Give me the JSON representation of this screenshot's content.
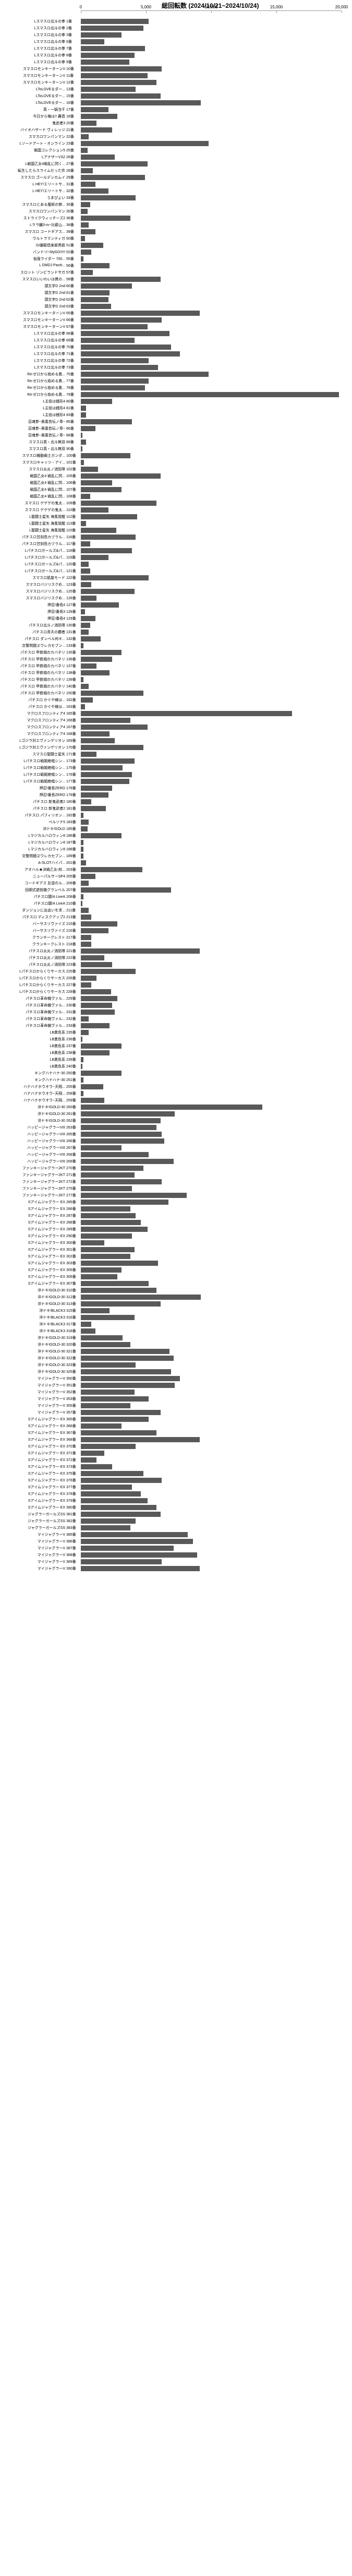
{
  "title": "総回転数 (2024/10/21~2024/10/24)",
  "max": 20000,
  "ticks": [
    0,
    5000,
    10000,
    15000,
    20000
  ],
  "bar_color": "#595959",
  "rows": [
    {
      "l": "Lスマスロ北斗の拳",
      "n": "1番",
      "v": 5200
    },
    {
      "l": "Lスマスロ北斗の拳",
      "n": "2番",
      "v": 4800
    },
    {
      "l": "Lスマスロ北斗の拳",
      "n": "3番",
      "v": 3100
    },
    {
      "l": "Lスマスロ北斗の拳",
      "n": "6番",
      "v": 1800
    },
    {
      "l": "Lスマスロ北斗の拳",
      "n": "7番",
      "v": 4900
    },
    {
      "l": "Lスマスロ北斗の拳",
      "n": "8番",
      "v": 4100
    },
    {
      "l": "Lスマスロ北斗の拳",
      "n": "9番",
      "v": 3700
    },
    {
      "l": "スマスロモンキーターンV",
      "n": "10番",
      "v": 6200
    },
    {
      "l": "スマスロモンキーターンV",
      "n": "11番",
      "v": 5100
    },
    {
      "l": "スマスロモンキーターンV",
      "n": "12番",
      "v": 5800
    },
    {
      "l": "LToLOVEるダー...",
      "n": "13番",
      "v": 4200
    },
    {
      "l": "LToLOVEるダー...",
      "n": "15番",
      "v": 6100
    },
    {
      "l": "LToLOVEるダー...",
      "n": "16番",
      "v": 9200
    },
    {
      "l": "真・一騎当千",
      "n": "17番",
      "v": 2100
    },
    {
      "l": "今日から俺は!! 轟音",
      "n": "18番",
      "v": 2800
    },
    {
      "l": "鬼武者3",
      "n": "20番",
      "v": 1200
    },
    {
      "l": "バイオハザード ヴィレッジ",
      "n": "21番",
      "v": 2400
    },
    {
      "l": "スマスロワンパンマン",
      "n": "22番",
      "v": 600
    },
    {
      "l": "Lソードアート・オンライン",
      "n": "23番",
      "v": 9800
    },
    {
      "l": "戦国コレクション5",
      "n": "25番",
      "v": 500
    },
    {
      "l": "LアナザーVS2",
      "n": "26番",
      "v": 2600
    },
    {
      "l": "L戦国乙女4戦乱に閃く...",
      "n": "27番",
      "v": 5100
    },
    {
      "l": "転生したらスライムだった件",
      "n": "28番",
      "v": 900
    },
    {
      "l": "スマスロ ゴールデンカムイ",
      "n": "29番",
      "v": 4900
    },
    {
      "l": "L HEY!エリートサ...",
      "n": "31番",
      "v": 1100
    },
    {
      "l": "L HEY!エリートサ...",
      "n": "32番",
      "v": 2100
    },
    {
      "l": "うまぴょい",
      "n": "33番",
      "v": 4200
    },
    {
      "l": "スマスロとある魔術の禁...",
      "n": "35番",
      "v": 700
    },
    {
      "l": "スマスロワンパンマン",
      "n": "35番",
      "v": 500
    },
    {
      "l": "ストライクウィッチーズ2",
      "n": "36番",
      "v": 3800
    },
    {
      "l": "Lララ臓3-m~比叡山...",
      "n": "38番",
      "v": 600
    },
    {
      "l": "スマスロ コードギアス...",
      "n": "39番",
      "v": 1100
    },
    {
      "l": "ウルトラマンティガ",
      "n": "50番",
      "v": 300
    },
    {
      "l": "Gi優駿倶楽部黒凱",
      "n": "51番",
      "v": 1700
    },
    {
      "l": "バンドリ! MyGO!!!!!",
      "n": "52番",
      "v": 800
    },
    {
      "l": "仮面ライダー 700...",
      "n": "55番",
      "v": 200
    },
    {
      "l": "L DMDJ Pacifi...",
      "n": "56番",
      "v": 2200
    },
    {
      "l": "スロット ゾンビランドサガ",
      "n": "57番",
      "v": 900
    },
    {
      "l": "スマスロいいわいは携の...",
      "n": "58番",
      "v": 6100
    },
    {
      "l": "頭文字D 2nd",
      "n": "60番",
      "v": 3900
    },
    {
      "l": "頭文字D 2nd",
      "n": "61番",
      "v": 2200
    },
    {
      "l": "頭文字D 2nd",
      "n": "62番",
      "v": 2100
    },
    {
      "l": "頭文字D 2nd",
      "n": "63番",
      "v": 2300
    },
    {
      "l": "スマスロモンキーターンV",
      "n": "65番",
      "v": 9100
    },
    {
      "l": "スマスロモンキーターンV",
      "n": "66番",
      "v": 6200
    },
    {
      "l": "スマスロモンキーターンV",
      "n": "67番",
      "v": 5100
    },
    {
      "l": "Lスマスロ北斗の拳",
      "n": "68番",
      "v": 6800
    },
    {
      "l": "Lスマスロ北斗の拳",
      "n": "69番",
      "v": 4100
    },
    {
      "l": "Lスマスロ北斗の拳",
      "n": "70番",
      "v": 6900
    },
    {
      "l": "Lスマスロ北斗の拳",
      "n": "71番",
      "v": 7600
    },
    {
      "l": "Lスマスロ北斗の拳",
      "n": "72番",
      "v": 5200
    },
    {
      "l": "Lスマスロ北斗の拳",
      "n": "73番",
      "v": 5900
    },
    {
      "l": "Re:ゼロから始める異...",
      "n": "75番",
      "v": 9800
    },
    {
      "l": "Re:ゼロから始める異...",
      "n": "77番",
      "v": 5200
    },
    {
      "l": "Re:ゼロから始める異...",
      "n": "78番",
      "v": 4900
    },
    {
      "l": "Re:ゼロから始める異...",
      "n": "79番",
      "v": 19800
    },
    {
      "l": "L主役は銭形4",
      "n": "80番",
      "v": 2400
    },
    {
      "l": "L主役は銭形4",
      "n": "81番",
      "v": 400
    },
    {
      "l": "L主役は銭形4",
      "n": "83番",
      "v": 400
    },
    {
      "l": "忍魂参~奥義皆伝ノ章~",
      "n": "85番",
      "v": 3900
    },
    {
      "l": "忍魂参~奥義皆伝ノ章~",
      "n": "86番",
      "v": 1100
    },
    {
      "l": "忍魂参~奥義皆伝ノ章~",
      "n": "88番",
      "v": 100
    },
    {
      "l": "スマスロ真・北斗無双",
      "n": "89番",
      "v": 400
    },
    {
      "l": "スマスロ真・北斗無双",
      "n": "90番",
      "v": 100
    },
    {
      "l": "スマスロ機動戦士ガンダ...",
      "n": "100番",
      "v": 3800
    },
    {
      "l": "スマスロキャッツ・アイ...",
      "n": "101番",
      "v": 250
    },
    {
      "l": "スマスロ炎炎ノ消防隊",
      "n": "102番",
      "v": 1300
    },
    {
      "l": "戦国乙女4 戦乱に閃...",
      "n": "105番",
      "v": 6100
    },
    {
      "l": "戦国乙女4 戦乱に閃...",
      "n": "106番",
      "v": 2400
    },
    {
      "l": "戦国乙女4 戦乱に閃...",
      "n": "107番",
      "v": 3100
    },
    {
      "l": "戦国乙女4 戦乱に閃...",
      "n": "108番",
      "v": 700
    },
    {
      "l": "スマスロ ゲゲゲの鬼太...",
      "n": "109番",
      "v": 5800
    },
    {
      "l": "スマスロ ゲゲゲの鬼太...",
      "n": "110番",
      "v": 2100
    },
    {
      "l": "L聖闘士星矢 海風覚醒",
      "n": "112番",
      "v": 4300
    },
    {
      "l": "L聖闘士星矢 海風覚醒",
      "n": "113番",
      "v": 400
    },
    {
      "l": "L聖闘士星矢 海風覚醒",
      "n": "115番",
      "v": 2700
    },
    {
      "l": "パチスロ甘刻島カヅラル...",
      "n": "116番",
      "v": 4200
    },
    {
      "l": "パチスロ甘刻島カヅラル...",
      "n": "117番",
      "v": 700
    },
    {
      "l": "Lパチスロガールズ&パ...",
      "n": "118番",
      "v": 3900
    },
    {
      "l": "Lパチスロガールズ&パ...",
      "n": "119番",
      "v": 2100
    },
    {
      "l": "Lパチスロガールズ&パ...",
      "n": "120番",
      "v": 600
    },
    {
      "l": "Lパチスロガールズ&パ...",
      "n": "121番",
      "v": 700
    },
    {
      "l": "スマスロ凱旋モード",
      "n": "122番",
      "v": 5200
    },
    {
      "l": "スマスロバジリスクめ...",
      "n": "123番",
      "v": 800
    },
    {
      "l": "スマスロバジリスクめ...",
      "n": "125番",
      "v": 4100
    },
    {
      "l": "スマスロバジリスクめ...",
      "n": "126番",
      "v": 1200
    },
    {
      "l": "押忍!番長4",
      "n": "127番",
      "v": 2900
    },
    {
      "l": "押忍!番長3",
      "n": "128番",
      "v": 300
    },
    {
      "l": "押忍!番長4",
      "n": "129番",
      "v": 1100
    },
    {
      "l": "パチスロ北斗ノ消防隊",
      "n": "130番",
      "v": 700
    },
    {
      "l": "パチスロ青天の覇者",
      "n": "131番",
      "v": 600
    },
    {
      "l": "パチスロ ダンベル何キ...",
      "n": "132番",
      "v": 1500
    },
    {
      "l": "交警問題ヱウレカセブン...",
      "n": "133番",
      "v": 200
    },
    {
      "l": "パチスロ 甲鉄城のカバネリ",
      "n": "135番",
      "v": 3100
    },
    {
      "l": "パチスロ 甲鉄城のカバネリ",
      "n": "136番",
      "v": 2400
    },
    {
      "l": "パチスロ 甲鉄城のカバネリ",
      "n": "137番",
      "v": 1200
    },
    {
      "l": "パチスロ 甲鉄城のカバネリ",
      "n": "138番",
      "v": 2200
    },
    {
      "l": "パチスロ 甲鉄城のカバネリ",
      "n": "139番",
      "v": 200
    },
    {
      "l": "パチスロ 甲鉄城のカバネリ",
      "n": "140番",
      "v": 600
    },
    {
      "l": "パチスロ 甲鉄城のカバネリ",
      "n": "150番",
      "v": 4800
    },
    {
      "l": "パチスロ かぐや様は...",
      "n": "162番",
      "v": 900
    },
    {
      "l": "パチスロ かぐや様は...",
      "n": "163番",
      "v": 300
    },
    {
      "l": "マクロスフロンティア4",
      "n": "165番",
      "v": 16200
    },
    {
      "l": "マクロスフロンティア4",
      "n": "166番",
      "v": 3800
    },
    {
      "l": "マクロスフロンティア4",
      "n": "167番",
      "v": 5100
    },
    {
      "l": "マクロスフロンティア4",
      "n": "168番",
      "v": 2200
    },
    {
      "l": "Lゴジラ対エヴァンゲリオン",
      "n": "169番",
      "v": 2600
    },
    {
      "l": "Lゴジラ対エヴァンゲリオン",
      "n": "170番",
      "v": 4800
    },
    {
      "l": "スマスロ聖闘士星矢",
      "n": "171番",
      "v": 1200
    },
    {
      "l": "Lパチスロ戦姫絶唱シン...",
      "n": "173番",
      "v": 4100
    },
    {
      "l": "Lパチスロ戦姫絶唱シン...",
      "n": "175番",
      "v": 3200
    },
    {
      "l": "Lパチスロ戦姫絶唱シン...",
      "n": "176番",
      "v": 3900
    },
    {
      "l": "Lパチスロ戦姫絶唱シン...",
      "n": "177番",
      "v": 3700
    },
    {
      "l": "押忍!番長ZERO",
      "n": "178番",
      "v": 2400
    },
    {
      "l": "押忍!番長ZERO",
      "n": "179番",
      "v": 2100
    },
    {
      "l": "パチスロ 新鬼武者2",
      "n": "180番",
      "v": 800
    },
    {
      "l": "パチスロ 新鬼武者2",
      "n": "181番",
      "v": 1900
    },
    {
      "l": "パチスロ パフィリオン...",
      "n": "182番",
      "v": 200
    },
    {
      "l": "ペルソナ5",
      "n": "183番",
      "v": 600
    },
    {
      "l": "沖ドキ!GOLD",
      "n": "185番",
      "v": 500
    },
    {
      "l": "Lマジカルハロウィン8",
      "n": "186番",
      "v": 3100
    },
    {
      "l": "Lマジカルハロウィン8",
      "n": "187番",
      "v": 200
    },
    {
      "l": "Lマジカルハロウィン8",
      "n": "188番",
      "v": 200
    },
    {
      "l": "交警問題ヱウレカセブン...",
      "n": "189番",
      "v": 200
    },
    {
      "l": "A-SLOTハイパ...",
      "n": "201番",
      "v": 400
    },
    {
      "l": "アオハル★決戦乙女-絞...",
      "n": "203番",
      "v": 4700
    },
    {
      "l": "ニューパルサーSP4",
      "n": "205番",
      "v": 1100
    },
    {
      "l": "コードギアス 反逆のル...",
      "n": "206番",
      "v": 600
    },
    {
      "l": "回胴式遊技機グランベル",
      "n": "207番",
      "v": 6900
    },
    {
      "l": "パチスロ闘!A LiveA",
      "n": "208番",
      "v": 200
    },
    {
      "l": "パチスロ闘!A LiveA",
      "n": "210番",
      "v": 100
    },
    {
      "l": "ダンジョンに出会いを求...",
      "n": "211番",
      "v": 600
    },
    {
      "l": "パチスロ ディスクアップ2",
      "n": "213番",
      "v": 800
    },
    {
      "l": "バーサスリヴァイズ",
      "n": "215番",
      "v": 2800
    },
    {
      "l": "バーサスリヴァイズ",
      "n": "216番",
      "v": 2100
    },
    {
      "l": "クランキークレスト",
      "n": "217番",
      "v": 800
    },
    {
      "l": "クランキークレスト",
      "n": "218番",
      "v": 800
    },
    {
      "l": "パチスロ炎炎ノ消防隊",
      "n": "221番",
      "v": 9100
    },
    {
      "l": "パチスロ炎炎ノ消防隊",
      "n": "222番",
      "v": 1800
    },
    {
      "l": "パチスロ炎炎ノ消防隊",
      "n": "223番",
      "v": 2400
    },
    {
      "l": "Lパチスロからくりサーカス",
      "n": "225番",
      "v": 4200
    },
    {
      "l": "Lパチスロからくりサーカス",
      "n": "226番",
      "v": 1200
    },
    {
      "l": "Lパチスロからくりサーカス",
      "n": "227番",
      "v": 800
    },
    {
      "l": "Lパチスロからくりサーカス",
      "n": "228番",
      "v": 2300
    },
    {
      "l": "パチスロ革命機ヴァル...",
      "n": "229番",
      "v": 2800
    },
    {
      "l": "パチスロ革命機ヴァル...",
      "n": "230番",
      "v": 2400
    },
    {
      "l": "パチスロ革命機ヴァル...",
      "n": "231番",
      "v": 2600
    },
    {
      "l": "パチスロ革命機ヴァル...",
      "n": "232番",
      "v": 600
    },
    {
      "l": "パチスロ革命機ヴァル...",
      "n": "233番",
      "v": 2200
    },
    {
      "l": "LB異色系",
      "n": "235番",
      "v": 600
    },
    {
      "l": "LB異色系",
      "n": "236番",
      "v": 100
    },
    {
      "l": "LB異色系",
      "n": "237番",
      "v": 3100
    },
    {
      "l": "LB異色系",
      "n": "238番",
      "v": 2200
    },
    {
      "l": "LB異色系",
      "n": "239番",
      "v": 200
    },
    {
      "l": "LB異色系",
      "n": "240番",
      "v": 100
    },
    {
      "l": "キングハナハナ-30",
      "n": "250番",
      "v": 3100
    },
    {
      "l": "キングハナハナ-30",
      "n": "251番",
      "v": 200
    },
    {
      "l": "ハナハナホウオウ~天翔...",
      "n": "255番",
      "v": 1700
    },
    {
      "l": "ハナハナホウオウ~天翔...",
      "n": "258番",
      "v": 200
    },
    {
      "l": "ハナハナホウオウ~天翔...",
      "n": "259番",
      "v": 1800
    },
    {
      "l": "沖ドキ!GOLD-30",
      "n": "260番",
      "v": 13900
    },
    {
      "l": "沖ドキ!GOLD-30",
      "n": "261番",
      "v": 7200
    },
    {
      "l": "沖ドキ!GOLD-30",
      "n": "262番",
      "v": 6100
    },
    {
      "l": "ハッピージャグラーVIII",
      "n": "263番",
      "v": 5800
    },
    {
      "l": "ハッピージャグラーVIII",
      "n": "265番",
      "v": 6200
    },
    {
      "l": "ハッピージャグラーVIII",
      "n": "266番",
      "v": 6400
    },
    {
      "l": "ハッピージャグラーVIII",
      "n": "267番",
      "v": 3100
    },
    {
      "l": "ハッピージャグラーVIII",
      "n": "268番",
      "v": 5200
    },
    {
      "l": "ハッピージャグラーVIII",
      "n": "269番",
      "v": 7100
    },
    {
      "l": "ファンキージャグラー2KT",
      "n": "270番",
      "v": 4800
    },
    {
      "l": "ファンキージャグラー2KT",
      "n": "271番",
      "v": 4100
    },
    {
      "l": "ファンキージャグラー2KT",
      "n": "272番",
      "v": 6200
    },
    {
      "l": "ファンキージャグラー2KT",
      "n": "275番",
      "v": 3900
    },
    {
      "l": "ファンキージャグラー2KT",
      "n": "277番",
      "v": 8100
    },
    {
      "l": "Sアイムジャグラー EX",
      "n": "285番",
      "v": 6700
    },
    {
      "l": "Sアイムジャグラー EX",
      "n": "286番",
      "v": 3800
    },
    {
      "l": "Sアイムジャグラー EX",
      "n": "287番",
      "v": 4200
    },
    {
      "l": "Sアイムジャグラー EX",
      "n": "288番",
      "v": 4600
    },
    {
      "l": "Sアイムジャグラー EX",
      "n": "289番",
      "v": 5100
    },
    {
      "l": "Sアイムジャグラー EX",
      "n": "290番",
      "v": 3900
    },
    {
      "l": "Sアイムジャグラー EX",
      "n": "300番",
      "v": 1800
    },
    {
      "l": "Sアイムジャグラー EX",
      "n": "301番",
      "v": 4100
    },
    {
      "l": "Sアイムジャグラー EX",
      "n": "302番",
      "v": 3800
    },
    {
      "l": "Sアイムジャグラー EX",
      "n": "303番",
      "v": 5900
    },
    {
      "l": "Sアイムジャグラー EX",
      "n": "305番",
      "v": 3100
    },
    {
      "l": "Sアイムジャグラー EX",
      "n": "306番",
      "v": 2800
    },
    {
      "l": "Sアイムジャグラー EX",
      "n": "307番",
      "v": 5200
    },
    {
      "l": "沖ドキ!GOLD-30",
      "n": "310番",
      "v": 5800
    },
    {
      "l": "沖ドキ!GOLD-30",
      "n": "312番",
      "v": 9200
    },
    {
      "l": "沖ドキ!GOLD-30",
      "n": "313番",
      "v": 6100
    },
    {
      "l": "沖ドキ!BLACK3",
      "n": "315番",
      "v": 2200
    },
    {
      "l": "沖ドキ!BLACK3",
      "n": "316番",
      "v": 4100
    },
    {
      "l": "沖ドキ!BLACK3",
      "n": "317番",
      "v": 800
    },
    {
      "l": "沖ドキ!BLACK3",
      "n": "318番",
      "v": 1100
    },
    {
      "l": "沖ドキ!GOLD-30",
      "n": "319番",
      "v": 3200
    },
    {
      "l": "沖ドキ!GOLD-30",
      "n": "320番",
      "v": 3800
    },
    {
      "l": "沖ドキ!GOLD-30",
      "n": "321番",
      "v": 6800
    },
    {
      "l": "沖ドキ!GOLD-30",
      "n": "322番",
      "v": 7100
    },
    {
      "l": "沖ドキ!GOLD-30",
      "n": "323番",
      "v": 4200
    },
    {
      "l": "沖ドキ!GOLD-30",
      "n": "325番",
      "v": 6900
    },
    {
      "l": "マイジャグラーV",
      "n": "350番",
      "v": 7600
    },
    {
      "l": "マイジャグラーV",
      "n": "351番",
      "v": 7200
    },
    {
      "l": "マイジャグラーV",
      "n": "352番",
      "v": 4100
    },
    {
      "l": "マイジャグラーV",
      "n": "353番",
      "v": 5200
    },
    {
      "l": "マイジャグラーV",
      "n": "355番",
      "v": 3800
    },
    {
      "l": "マイジャグラーV",
      "n": "357番",
      "v": 6100
    },
    {
      "l": "Sアイムジャグラー EX",
      "n": "365番",
      "v": 5200
    },
    {
      "l": "Sアイムジャグラー EX",
      "n": "366番",
      "v": 3100
    },
    {
      "l": "Sアイムジャグラー EX",
      "n": "367番",
      "v": 5800
    },
    {
      "l": "Sアイムジャグラー EX",
      "n": "368番",
      "v": 9100
    },
    {
      "l": "Sアイムジャグラー EX",
      "n": "370番",
      "v": 4200
    },
    {
      "l": "Sアイムジャグラー EX",
      "n": "371番",
      "v": 1800
    },
    {
      "l": "Sアイムジャグラー EX",
      "n": "372番",
      "v": 1200
    },
    {
      "l": "Sアイムジャグラー EX",
      "n": "373番",
      "v": 2400
    },
    {
      "l": "Sアイムジャグラー EX",
      "n": "375番",
      "v": 4800
    },
    {
      "l": "Sアイムジャグラー EX",
      "n": "376番",
      "v": 6200
    },
    {
      "l": "Sアイムジャグラー EX",
      "n": "377番",
      "v": 3900
    },
    {
      "l": "Sアイムジャグラー EX",
      "n": "378番",
      "v": 4600
    },
    {
      "l": "Sアイムジャグラー EX",
      "n": "379番",
      "v": 5100
    },
    {
      "l": "Sアイムジャグラー EX",
      "n": "380番",
      "v": 5800
    },
    {
      "l": "ジャグラーガールズSS",
      "n": "381番",
      "v": 6100
    },
    {
      "l": "ジャグラーガールズSS",
      "n": "382番",
      "v": 4200
    },
    {
      "l": "ジャグラーガールズSS",
      "n": "383番",
      "v": 3800
    },
    {
      "l": "マイジャグラーV",
      "n": "385番",
      "v": 8200
    },
    {
      "l": "マイジャグラーV",
      "n": "386番",
      "v": 8600
    },
    {
      "l": "マイジャグラーV",
      "n": "387番",
      "v": 7100
    },
    {
      "l": "マイジャグラーV",
      "n": "388番",
      "v": 8900
    },
    {
      "l": "マイジャグラーV",
      "n": "389番",
      "v": 6200
    },
    {
      "l": "マイジャグラーV",
      "n": "390番",
      "v": 9100
    }
  ]
}
